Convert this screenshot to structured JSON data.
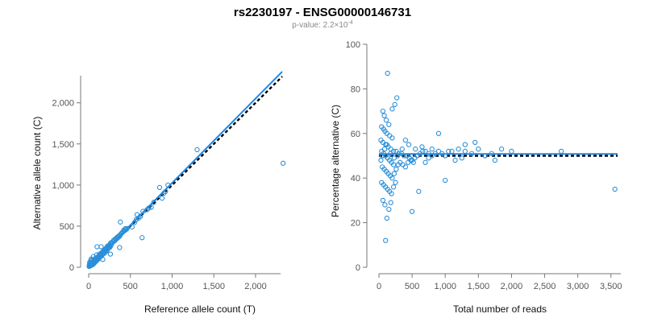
{
  "header": {
    "title": "rs2230197 - ENSG00000146731",
    "pvalue_prefix": "p-value: 2.2×10",
    "pvalue_exp": "-4"
  },
  "colors": {
    "points": "#2b8fd8",
    "fit": "#1f88e5",
    "reference": "#000000"
  },
  "chart_data": [
    {
      "type": "scatter",
      "xlabel": "Reference allele count (T)",
      "ylabel": "Alternative allele count (C)",
      "xlim": [
        0,
        2300
      ],
      "ylim": [
        0,
        2330
      ],
      "xticks": [
        0,
        500,
        1000,
        1500,
        2000
      ],
      "xtick_labels": [
        "0",
        "500",
        "1,000",
        "1,500",
        "2,000"
      ],
      "yticks": [
        0,
        500,
        1000,
        1500,
        2000
      ],
      "ytick_labels": [
        "0",
        "500",
        "1,000",
        "1,500",
        "2,000"
      ],
      "lines": [
        {
          "style": "dashed",
          "color": "#000000",
          "from": [
            0,
            0
          ],
          "to": [
            2320,
            2320
          ]
        },
        {
          "style": "solid",
          "color": "#1f88e5",
          "from": [
            0,
            0
          ],
          "to": [
            2320,
            2380
          ]
        }
      ],
      "points": [
        [
          5,
          10
        ],
        [
          8,
          20
        ],
        [
          10,
          35
        ],
        [
          12,
          60
        ],
        [
          15,
          25
        ],
        [
          18,
          40
        ],
        [
          20,
          30
        ],
        [
          22,
          55
        ],
        [
          25,
          20
        ],
        [
          25,
          80
        ],
        [
          28,
          45
        ],
        [
          30,
          35
        ],
        [
          30,
          100
        ],
        [
          35,
          25
        ],
        [
          35,
          60
        ],
        [
          38,
          40
        ],
        [
          40,
          50
        ],
        [
          42,
          30
        ],
        [
          45,
          65
        ],
        [
          45,
          90
        ],
        [
          48,
          45
        ],
        [
          50,
          55
        ],
        [
          52,
          35
        ],
        [
          55,
          70
        ],
        [
          55,
          130
        ],
        [
          58,
          50
        ],
        [
          60,
          60
        ],
        [
          62,
          45
        ],
        [
          65,
          75
        ],
        [
          68,
          60
        ],
        [
          70,
          55
        ],
        [
          72,
          90
        ],
        [
          75,
          70
        ],
        [
          78,
          65
        ],
        [
          80,
          85
        ],
        [
          82,
          110
        ],
        [
          85,
          80
        ],
        [
          88,
          95
        ],
        [
          90,
          75
        ],
        [
          95,
          150
        ],
        [
          98,
          90
        ],
        [
          100,
          120
        ],
        [
          100,
          250
        ],
        [
          105,
          100
        ],
        [
          110,
          115
        ],
        [
          112,
          95
        ],
        [
          115,
          130
        ],
        [
          120,
          110
        ],
        [
          125,
          140
        ],
        [
          128,
          120
        ],
        [
          130,
          160
        ],
        [
          135,
          125
        ],
        [
          140,
          150
        ],
        [
          145,
          135
        ],
        [
          150,
          170
        ],
        [
          150,
          250
        ],
        [
          155,
          140
        ],
        [
          160,
          180
        ],
        [
          165,
          155
        ],
        [
          170,
          190
        ],
        [
          175,
          165
        ],
        [
          180,
          200
        ],
        [
          185,
          170
        ],
        [
          190,
          210
        ],
        [
          195,
          185
        ],
        [
          200,
          220
        ],
        [
          205,
          190
        ],
        [
          210,
          230
        ],
        [
          215,
          200
        ],
        [
          220,
          250
        ],
        [
          225,
          215
        ],
        [
          230,
          260
        ],
        [
          235,
          230
        ],
        [
          240,
          255
        ],
        [
          245,
          240
        ],
        [
          250,
          270
        ],
        [
          255,
          245
        ],
        [
          260,
          290
        ],
        [
          265,
          260
        ],
        [
          270,
          300
        ],
        [
          280,
          290
        ],
        [
          290,
          310
        ],
        [
          300,
          330
        ],
        [
          310,
          320
        ],
        [
          320,
          345
        ],
        [
          330,
          340
        ],
        [
          340,
          365
        ],
        [
          350,
          360
        ],
        [
          360,
          380
        ],
        [
          370,
          375
        ],
        [
          380,
          395
        ],
        [
          390,
          410
        ],
        [
          400,
          420
        ],
        [
          410,
          430
        ],
        [
          420,
          450
        ],
        [
          430,
          445
        ],
        [
          440,
          470
        ],
        [
          450,
          460
        ],
        [
          460,
          470
        ],
        [
          380,
          550
        ],
        [
          170,
          95
        ],
        [
          260,
          160
        ],
        [
          370,
          240
        ],
        [
          520,
          490
        ],
        [
          550,
          545
        ],
        [
          570,
          580
        ],
        [
          580,
          640
        ],
        [
          600,
          600
        ],
        [
          620,
          620
        ],
        [
          650,
          680
        ],
        [
          640,
          360
        ],
        [
          700,
          700
        ],
        [
          720,
          720
        ],
        [
          750,
          730
        ],
        [
          780,
          790
        ],
        [
          850,
          970
        ],
        [
          880,
          840
        ],
        [
          900,
          900
        ],
        [
          920,
          920
        ],
        [
          950,
          1000
        ],
        [
          1300,
          1430
        ],
        [
          2330,
          1265
        ]
      ]
    },
    {
      "type": "scatter",
      "xlabel": "Total number of reads",
      "ylabel": "Percentage alternative (C)",
      "xlim": [
        0,
        3600
      ],
      "ylim": [
        0,
        100
      ],
      "xticks": [
        0,
        500,
        1000,
        1500,
        2000,
        2500,
        3000,
        3500
      ],
      "xtick_labels": [
        "0",
        "500",
        "1,000",
        "1,500",
        "2,000",
        "2,500",
        "3,000",
        "3,500"
      ],
      "yticks": [
        0,
        20,
        40,
        60,
        80,
        100
      ],
      "ytick_labels": [
        "0",
        "20",
        "40",
        "60",
        "80",
        "100"
      ],
      "lines": [
        {
          "style": "dashed",
          "color": "#000000",
          "from": [
            0,
            50
          ],
          "to": [
            3600,
            50
          ]
        },
        {
          "style": "solid",
          "color": "#1f88e5",
          "from": [
            0,
            50.8
          ],
          "to": [
            3600,
            50.8
          ]
        }
      ],
      "points": [
        [
          130,
          87
        ],
        [
          270,
          76
        ],
        [
          240,
          73
        ],
        [
          200,
          71
        ],
        [
          60,
          70
        ],
        [
          80,
          68
        ],
        [
          110,
          66
        ],
        [
          150,
          64
        ],
        [
          40,
          63
        ],
        [
          70,
          62
        ],
        [
          90,
          61
        ],
        [
          120,
          60
        ],
        [
          160,
          59
        ],
        [
          200,
          58
        ],
        [
          30,
          57
        ],
        [
          60,
          56
        ],
        [
          100,
          55
        ],
        [
          140,
          54
        ],
        [
          180,
          53
        ],
        [
          220,
          52
        ],
        [
          260,
          52
        ],
        [
          300,
          51
        ],
        [
          340,
          51
        ],
        [
          380,
          50
        ],
        [
          420,
          50
        ],
        [
          460,
          49
        ],
        [
          500,
          48
        ],
        [
          540,
          49
        ],
        [
          580,
          50
        ],
        [
          620,
          51
        ],
        [
          660,
          52
        ],
        [
          700,
          52
        ],
        [
          750,
          51
        ],
        [
          800,
          50
        ],
        [
          850,
          51
        ],
        [
          900,
          52
        ],
        [
          950,
          51
        ],
        [
          1000,
          50
        ],
        [
          1100,
          52
        ],
        [
          1200,
          53
        ],
        [
          1300,
          52
        ],
        [
          1400,
          51
        ],
        [
          1500,
          53
        ],
        [
          1600,
          50
        ],
        [
          1700,
          51
        ],
        [
          50,
          45
        ],
        [
          80,
          44
        ],
        [
          110,
          43
        ],
        [
          140,
          42
        ],
        [
          170,
          41
        ],
        [
          200,
          40
        ],
        [
          230,
          42
        ],
        [
          260,
          44
        ],
        [
          290,
          46
        ],
        [
          320,
          47
        ],
        [
          360,
          46
        ],
        [
          400,
          45
        ],
        [
          440,
          47
        ],
        [
          480,
          48
        ],
        [
          520,
          47
        ],
        [
          40,
          38
        ],
        [
          70,
          37
        ],
        [
          100,
          36
        ],
        [
          130,
          35
        ],
        [
          160,
          34
        ],
        [
          190,
          33
        ],
        [
          220,
          36
        ],
        [
          250,
          38
        ],
        [
          40,
          52
        ],
        [
          70,
          51
        ],
        [
          100,
          50
        ],
        [
          130,
          49
        ],
        [
          160,
          48
        ],
        [
          190,
          47
        ],
        [
          220,
          46
        ],
        [
          60,
          30
        ],
        [
          90,
          28
        ],
        [
          120,
          22
        ],
        [
          150,
          26
        ],
        [
          180,
          29
        ],
        [
          100,
          12
        ],
        [
          500,
          25
        ],
        [
          600,
          34
        ],
        [
          1000,
          39
        ],
        [
          1300,
          55
        ],
        [
          1450,
          56
        ],
        [
          1750,
          48
        ],
        [
          1850,
          53
        ],
        [
          2000,
          52
        ],
        [
          2750,
          52
        ],
        [
          3560,
          35
        ],
        [
          350,
          53
        ],
        [
          400,
          57
        ],
        [
          450,
          55
        ],
        [
          550,
          53
        ],
        [
          650,
          54
        ],
        [
          700,
          47
        ],
        [
          750,
          49
        ],
        [
          800,
          53
        ],
        [
          900,
          60
        ],
        [
          1050,
          52
        ],
        [
          1150,
          48
        ],
        [
          1250,
          49
        ],
        [
          30,
          48
        ],
        [
          50,
          50
        ],
        [
          85,
          53
        ],
        [
          120,
          55
        ],
        [
          175,
          51
        ],
        [
          230,
          49
        ],
        [
          280,
          50
        ]
      ]
    }
  ]
}
